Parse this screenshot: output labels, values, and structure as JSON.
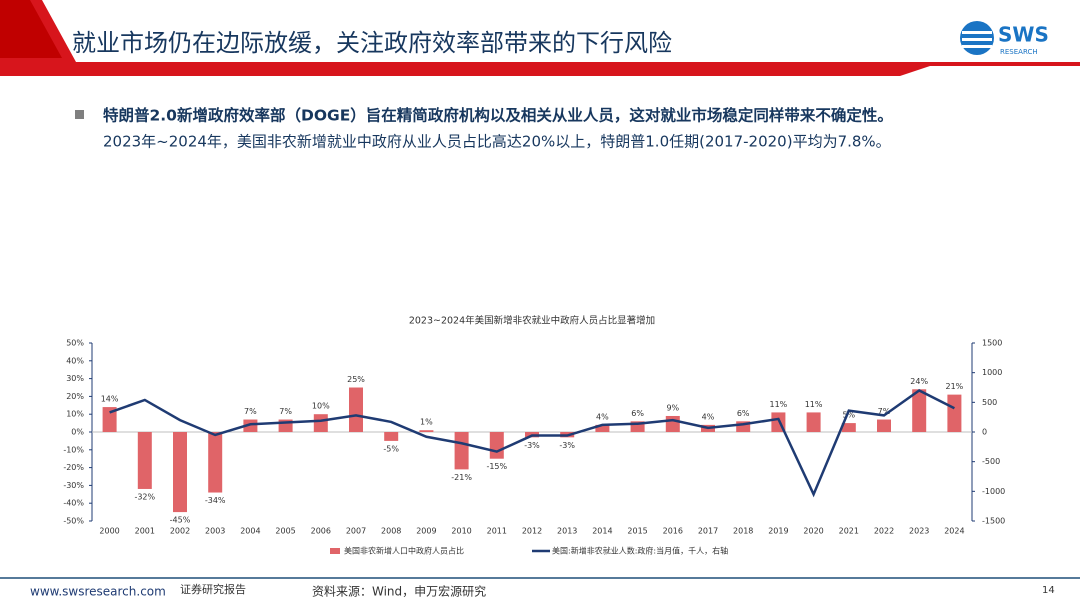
{
  "header": {
    "title": "就业市场仍在边际放缓，关注政府效率部带来的下行风险",
    "logo": "SWS",
    "logo_sub": "RESEARCH"
  },
  "body": {
    "bullet_bold": "特朗普2.0新增政府效率部（DOGE）旨在精简政府机构以及相关从业人员，这对就业市场稳定同样带来不确定性。",
    "bullet_text": "2023年~2024年，美国非农新增就业中政府从业人员占比高达20%以上，特朗普1.0任期(2017-2020)平均为7.8%。"
  },
  "chart_data": {
    "type": "bar",
    "title": "2023~2024年美国新增非农就业中政府人员占比显著增加",
    "categories": [
      "2000",
      "2001",
      "2002",
      "2003",
      "2004",
      "2005",
      "2006",
      "2007",
      "2008",
      "2009",
      "2010",
      "2011",
      "2012",
      "2013",
      "2014",
      "2015",
      "2016",
      "2017",
      "2018",
      "2019",
      "2020",
      "2021",
      "2022",
      "2023",
      "2024"
    ],
    "series": [
      {
        "name": "美国非农新增人口中政府人员占比",
        "type": "bar",
        "color": "#e06468",
        "values": [
          14,
          -32,
          -45,
          -34,
          7,
          7,
          10,
          25,
          -5,
          1,
          -21,
          -15,
          -3,
          -3,
          4,
          6,
          9,
          4,
          6,
          11,
          11,
          5,
          7,
          24,
          21
        ],
        "value_labels": [
          "14%",
          "-32%",
          "-45%",
          "-34%",
          "7%",
          "7%",
          "10%",
          "25%",
          "-5%",
          "1%",
          "-21%",
          "-15%",
          "-3%",
          "-3%",
          "4%",
          "6%",
          "9%",
          "4%",
          "6%",
          "11%",
          "11%",
          "5%",
          "7%",
          "24%",
          "21%"
        ]
      },
      {
        "name": "美国:新增非农就业人数:政府:当月值，千人，右轴",
        "type": "line",
        "axis": "y2",
        "color": "#1f3b73",
        "values": [
          330,
          540,
          200,
          -50,
          130,
          160,
          190,
          280,
          170,
          -80,
          -190,
          -330,
          -60,
          -60,
          120,
          140,
          200,
          70,
          130,
          220,
          -1050,
          360,
          280,
          700,
          400
        ]
      }
    ],
    "ylim": [
      -50,
      50
    ],
    "yticks": [
      {
        "value": -50,
        "label": "-50%"
      },
      {
        "value": -40,
        "label": "-40%"
      },
      {
        "value": -30,
        "label": "-30%"
      },
      {
        "value": -20,
        "label": "-20%"
      },
      {
        "value": -10,
        "label": "-10%"
      },
      {
        "value": 0,
        "label": "0%"
      },
      {
        "value": 10,
        "label": "10%"
      },
      {
        "value": 20,
        "label": "20%"
      },
      {
        "value": 30,
        "label": "30%"
      },
      {
        "value": 40,
        "label": "40%"
      },
      {
        "value": 50,
        "label": "50%"
      }
    ],
    "y2lim": [
      -1500,
      1500
    ],
    "y2ticks": [
      -1500,
      -1000,
      -500,
      0,
      500,
      1000,
      1500
    ]
  },
  "footer": {
    "url": "www.swsresearch.com",
    "report": "证券研究报告",
    "source": "资料来源：Wind，申万宏源研究",
    "page": "14"
  }
}
